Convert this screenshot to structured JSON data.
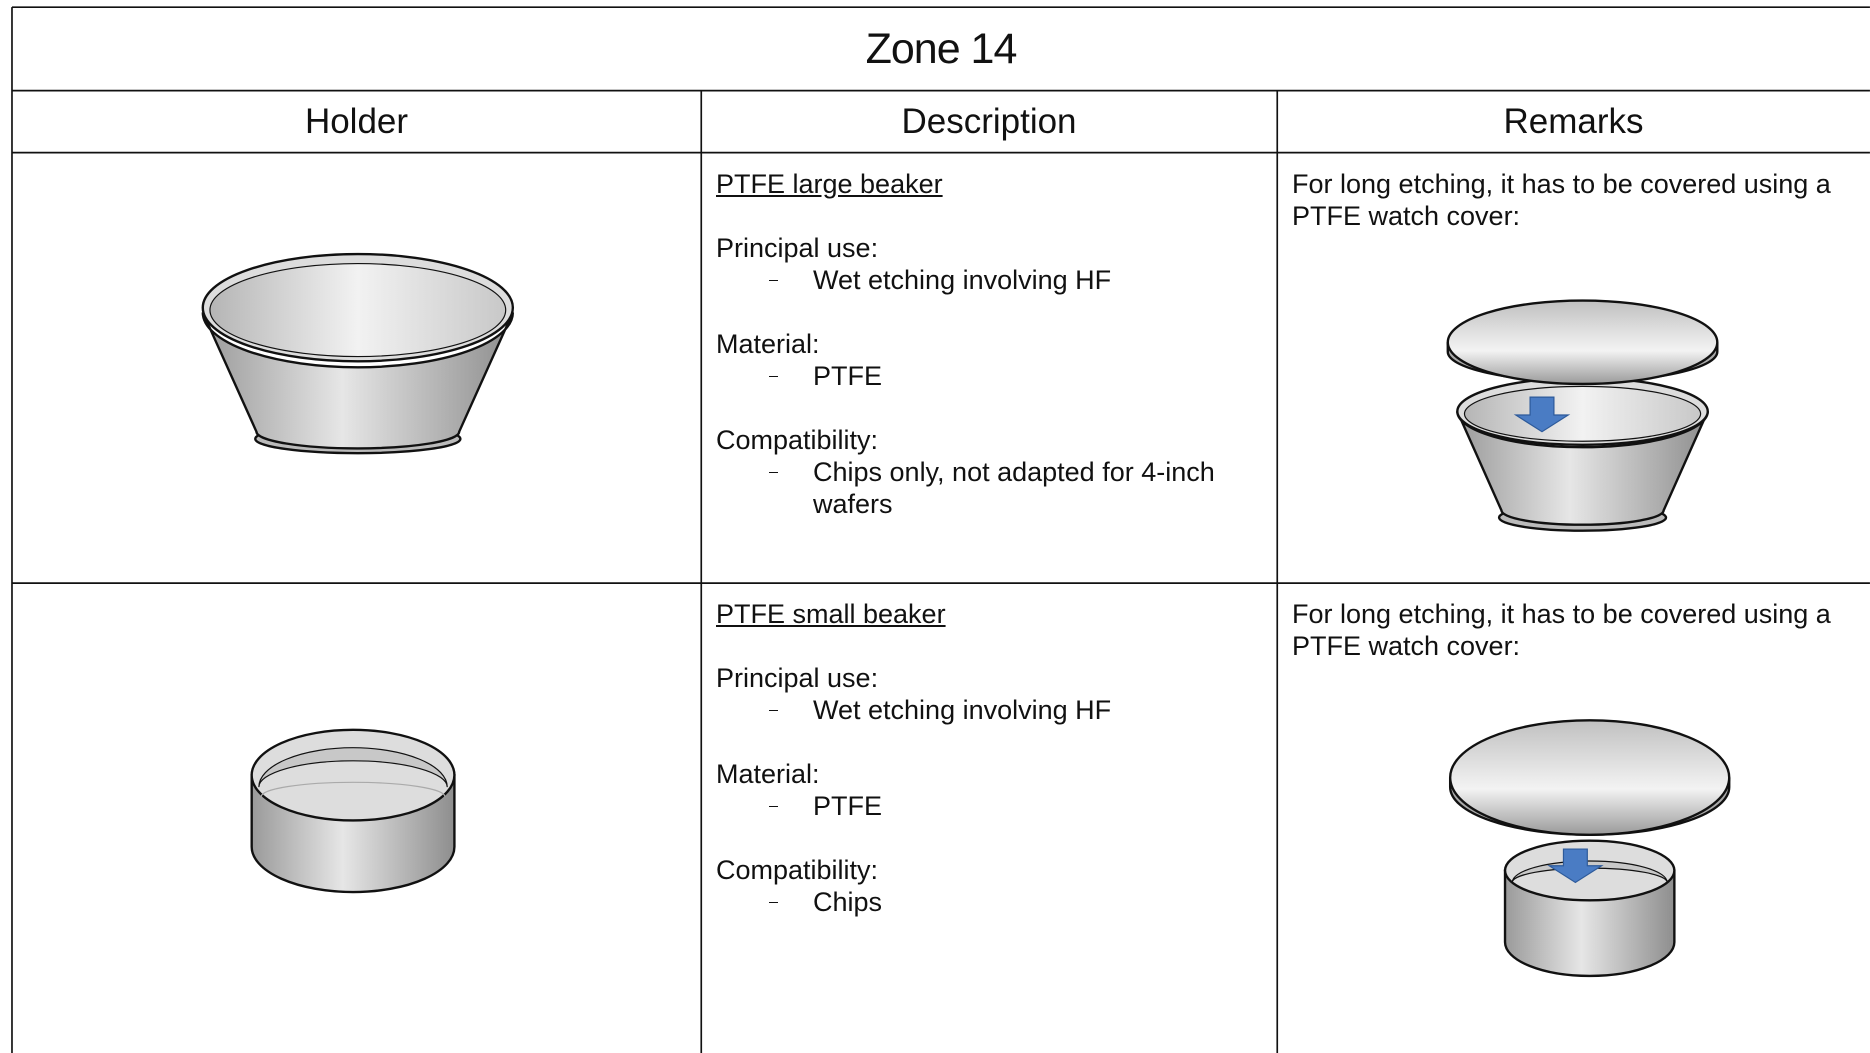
{
  "table": {
    "title": "Zone 14",
    "headers": [
      "Holder",
      "Description",
      "Remarks"
    ],
    "rows": [
      {
        "description": {
          "title": "PTFE large beaker",
          "sections": [
            {
              "label": "Principal use:",
              "items": [
                "Wet etching involving HF"
              ]
            },
            {
              "label": "Material:",
              "items": [
                "PTFE"
              ]
            },
            {
              "label": "Compatibility:",
              "items": [
                "Chips only, not adapted for 4-inch wafers"
              ]
            }
          ]
        },
        "remarks": "For long etching, it has to be covered using a PTFE watch cover:"
      },
      {
        "description": {
          "title": "PTFE small beaker",
          "sections": [
            {
              "label": "Principal use:",
              "items": [
                "Wet etching involving HF"
              ]
            },
            {
              "label": "Material:",
              "items": [
                "PTFE"
              ]
            },
            {
              "label": "Compatibility:",
              "items": [
                "Chips"
              ]
            }
          ]
        },
        "remarks": "For long etching, it has to be covered using a PTFE watch cover:"
      }
    ]
  }
}
